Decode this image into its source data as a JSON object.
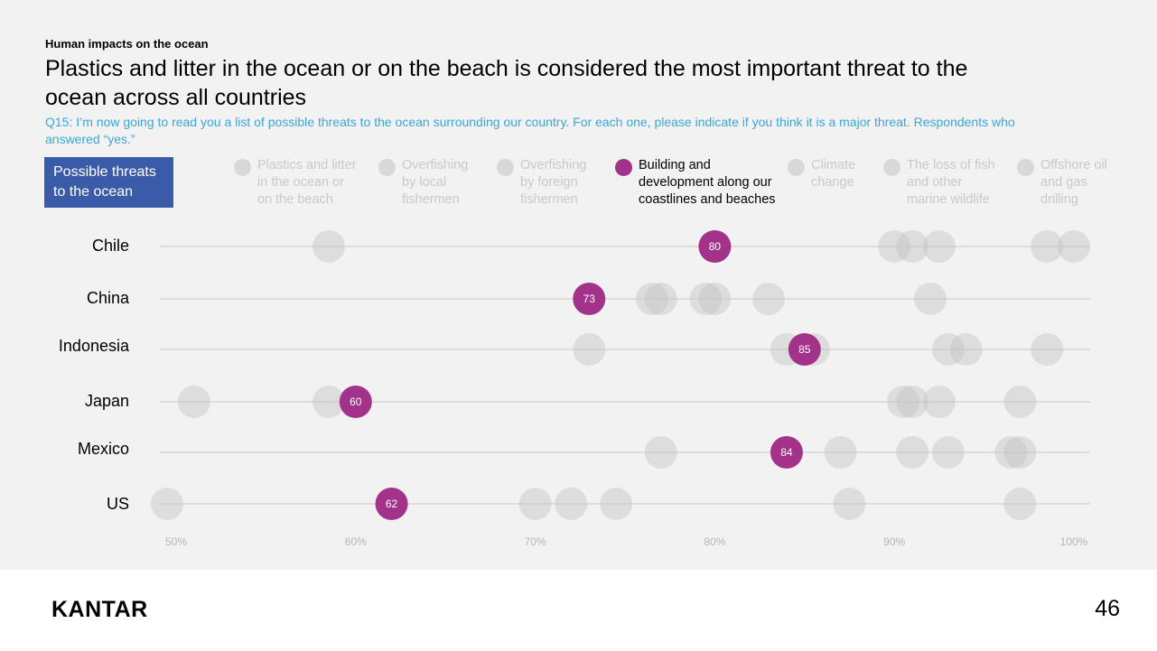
{
  "eyebrow": "Human impacts on the ocean",
  "headline": "Plastics and litter in the ocean or on the beach is considered the most important threat to the ocean across all countries",
  "question": "Q15: I’m now going to read you a list of possible threats to the ocean surrounding our country. For each one, please indicate if you think it is a major threat. Respondents who answered “yes.”",
  "threat_box": "Possible threats to the ocean",
  "legend": [
    {
      "label": "Plastics and litter\nin the ocean or\non the beach",
      "highlight": false
    },
    {
      "label": "Overfishing\nby local\nfishermen",
      "highlight": false
    },
    {
      "label": "Overfishing\nby foreign\nfishermen",
      "highlight": false
    },
    {
      "label": "Building and\ndevelopment along our\ncoastlines and beaches",
      "highlight": true
    },
    {
      "label": "Climate\nchange",
      "highlight": false
    },
    {
      "label": "The loss of fish\nand other\nmarine wildlife",
      "highlight": false
    },
    {
      "label": "Offshore oil\nand gas\ndrilling",
      "highlight": false
    }
  ],
  "colors": {
    "highlight": "#a3338a",
    "muted": "#d4d4d4",
    "threat_box": "#3a5ca8",
    "question": "#3aa6dc"
  },
  "chart_data": {
    "type": "scatter",
    "xlim": [
      50,
      100
    ],
    "x_ticks": [
      "50%",
      "60%",
      "70%",
      "80%",
      "90%",
      "100%"
    ],
    "x_tick_values": [
      50,
      60,
      70,
      80,
      90,
      100
    ],
    "rows": [
      {
        "country": "Chile",
        "highlight": 80,
        "others": [
          58.5,
          90,
          91,
          92.5,
          98.5,
          100
        ]
      },
      {
        "country": "China",
        "highlight": 73,
        "others": [
          76.5,
          77,
          79.5,
          80,
          83,
          92
        ]
      },
      {
        "country": "Indonesia",
        "highlight": 85,
        "others": [
          73,
          84,
          85.5,
          93,
          94,
          98.5
        ]
      },
      {
        "country": "Japan",
        "highlight": 60,
        "others": [
          51,
          58.5,
          90.5,
          91,
          92.5,
          97
        ]
      },
      {
        "country": "Mexico",
        "highlight": 84,
        "others": [
          77,
          87,
          91,
          93,
          96.5,
          97
        ]
      },
      {
        "country": "US",
        "highlight": 62,
        "others": [
          49.5,
          70,
          72,
          74.5,
          87.5,
          97
        ]
      }
    ]
  },
  "footer": {
    "logo": "KANTAR",
    "page": "46"
  }
}
